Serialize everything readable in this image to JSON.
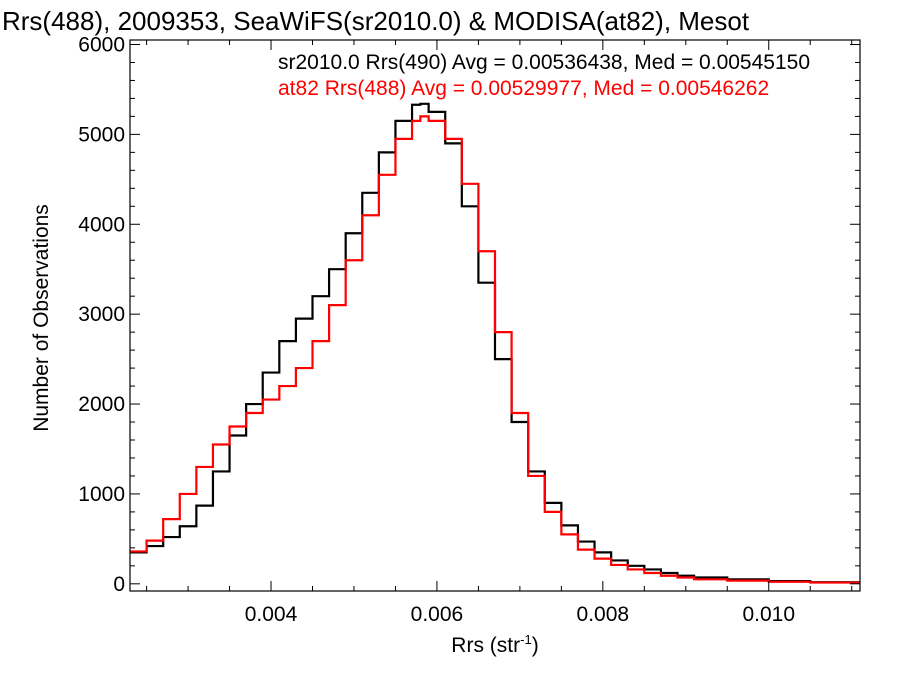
{
  "chart_data": {
    "type": "line",
    "title": "Rrs(488), 2009353, SeaWiFS(sr2010.0) & MODISA(at82), Mesot",
    "xlabel": "Rrs (str",
    "xlabel_sup": "-1",
    "xlabel_close": ")",
    "ylabel": "Number of Observations",
    "xlim": [
      0.0023,
      0.0111
    ],
    "ylim": [
      -80,
      6050
    ],
    "xticks": [
      0.004,
      0.006,
      0.008,
      0.01
    ],
    "xtick_labels": [
      "0.004",
      "0.006",
      "0.008",
      "0.010"
    ],
    "yticks": [
      0,
      1000,
      2000,
      3000,
      4000,
      5000,
      6000
    ],
    "ytick_labels": [
      "0",
      "1000",
      "2000",
      "3000",
      "4000",
      "5000",
      "6000"
    ],
    "style": "histogram-step",
    "series": [
      {
        "name": "sr2010.0 Rrs(490) Avg = 0.00536438, Med = 0.00545150",
        "color": "#000000",
        "x": [
          0.0023,
          0.0025,
          0.0027,
          0.0029,
          0.0031,
          0.0033,
          0.0035,
          0.0037,
          0.0039,
          0.0041,
          0.0043,
          0.0045,
          0.0047,
          0.0049,
          0.0051,
          0.0053,
          0.0055,
          0.0057,
          0.0058,
          0.0059,
          0.0061,
          0.0063,
          0.0065,
          0.0067,
          0.0069,
          0.0071,
          0.0073,
          0.0075,
          0.0077,
          0.0079,
          0.0081,
          0.0083,
          0.0085,
          0.0087,
          0.0089,
          0.0091,
          0.0095,
          0.01,
          0.0105,
          0.0111
        ],
        "y": [
          350,
          420,
          520,
          640,
          870,
          1250,
          1650,
          2000,
          2350,
          2700,
          2950,
          3200,
          3500,
          3900,
          4350,
          4800,
          5150,
          5330,
          5340,
          5250,
          4900,
          4200,
          3350,
          2500,
          1800,
          1250,
          900,
          650,
          470,
          350,
          260,
          200,
          160,
          120,
          90,
          70,
          50,
          30,
          18,
          10
        ]
      },
      {
        "name": "at82 Rrs(488) Avg = 0.00529977, Med = 0.00546262",
        "color": "#ff0000",
        "x": [
          0.0023,
          0.0025,
          0.0027,
          0.0029,
          0.0031,
          0.0033,
          0.0035,
          0.0037,
          0.0039,
          0.0041,
          0.0043,
          0.0045,
          0.0047,
          0.0049,
          0.0051,
          0.0053,
          0.0055,
          0.0057,
          0.0058,
          0.0059,
          0.0061,
          0.0063,
          0.0065,
          0.0067,
          0.0069,
          0.0071,
          0.0073,
          0.0075,
          0.0077,
          0.0079,
          0.0081,
          0.0083,
          0.0085,
          0.0087,
          0.0089,
          0.0091,
          0.0095,
          0.01,
          0.0105,
          0.0111
        ],
        "y": [
          360,
          480,
          720,
          1000,
          1300,
          1550,
          1750,
          1900,
          2050,
          2200,
          2400,
          2700,
          3100,
          3600,
          4100,
          4550,
          4950,
          5150,
          5200,
          5150,
          4950,
          4450,
          3700,
          2800,
          1900,
          1200,
          800,
          550,
          380,
          280,
          210,
          160,
          120,
          90,
          70,
          50,
          35,
          22,
          14,
          8
        ]
      }
    ]
  }
}
